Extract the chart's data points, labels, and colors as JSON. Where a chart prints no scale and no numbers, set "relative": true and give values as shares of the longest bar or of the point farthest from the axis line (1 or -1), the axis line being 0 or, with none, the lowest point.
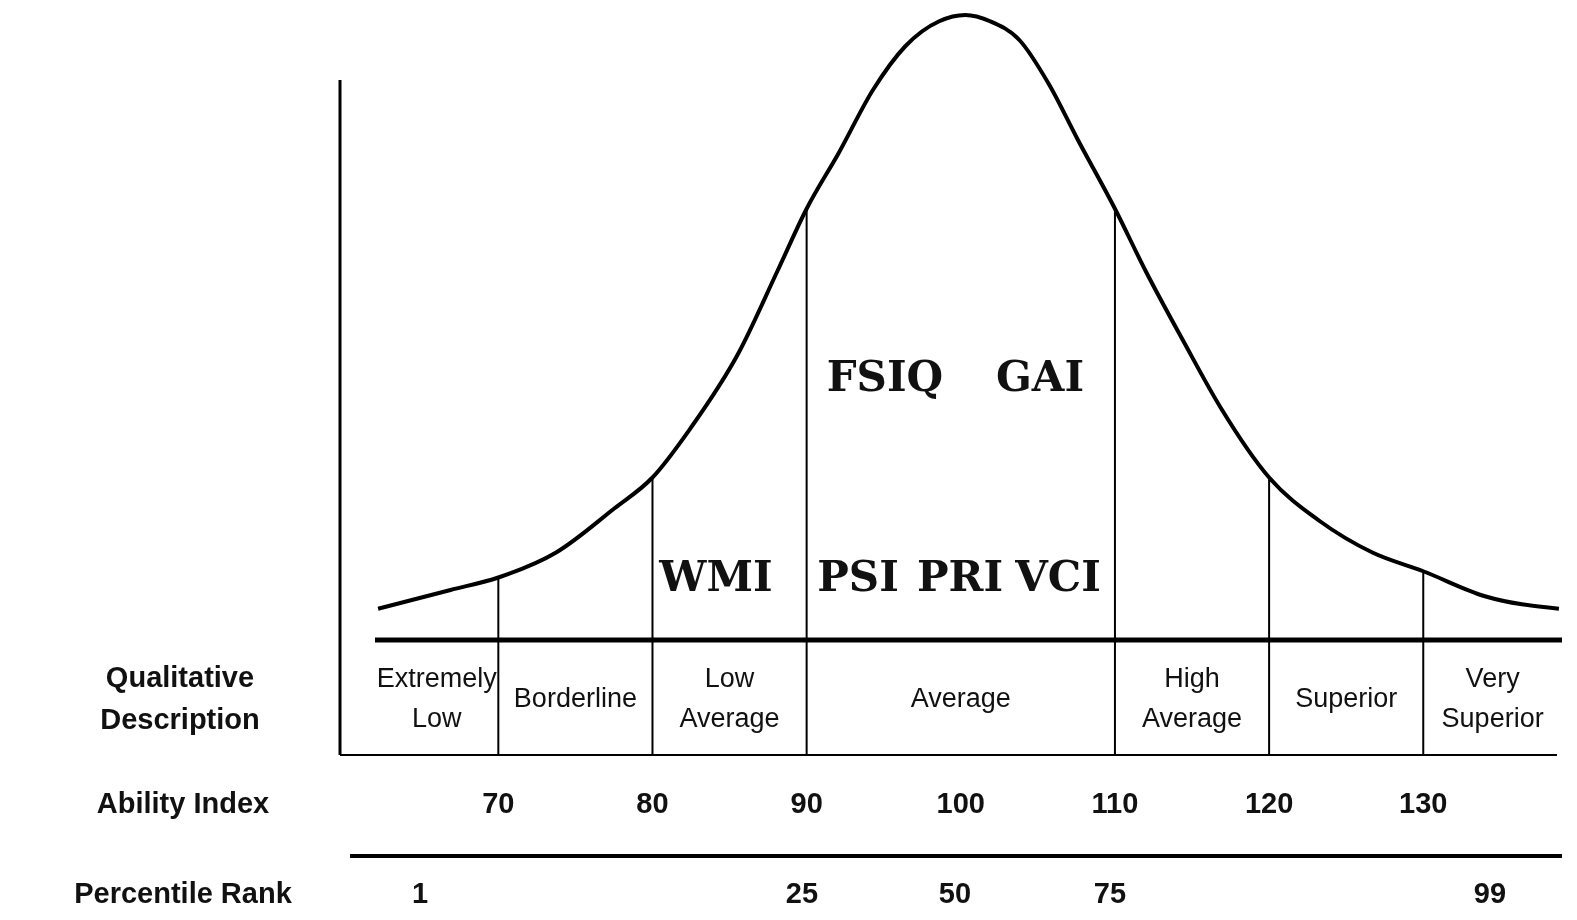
{
  "chart_data": {
    "type": "line",
    "relative": true,
    "xlim": [
      62,
      139
    ],
    "xticks": [
      70,
      80,
      90,
      100,
      110,
      120,
      130
    ],
    "xlabel": "Ability Index",
    "series": [
      {
        "color": "#000000",
        "x": [
          62.2,
          66.9,
          70,
          73.75,
          77.5,
          80,
          82.5,
          85.6,
          88.1,
          90,
          92.1,
          94.3,
          96.4,
          98.6,
          100.3,
          101.9,
          103.8,
          105.7,
          107.6,
          110,
          112,
          114.4,
          116.9,
          120,
          123.3,
          126.7,
          130,
          134,
          138.8
        ],
        "values": [
          0.05,
          0.08,
          0.1,
          0.14,
          0.21,
          0.26,
          0.34,
          0.46,
          0.59,
          0.69,
          0.78,
          0.88,
          0.95,
          0.99,
          1,
          0.99,
          0.96,
          0.89,
          0.8,
          0.69,
          0.59,
          0.48,
          0.37,
          0.26,
          0.19,
          0.14,
          0.11,
          0.07,
          0.05
        ]
      }
    ],
    "ref_lines": [
      {
        "axis": "x",
        "value": 70
      },
      {
        "axis": "x",
        "value": 80
      },
      {
        "axis": "x",
        "value": 90
      },
      {
        "axis": "x",
        "value": 110
      },
      {
        "axis": "x",
        "value": 120
      },
      {
        "axis": "x",
        "value": 130
      }
    ],
    "annotations": [
      "FSIQ",
      "GAI",
      "WMI",
      "PSI",
      "PRI",
      "VCI",
      "Qualitative Description",
      "Extremely Low",
      "Borderline",
      "Low Average",
      "Average",
      "High Average",
      "Superior",
      "Very Superior",
      "Percentile Rank",
      "1",
      "25",
      "50",
      "75",
      "99"
    ]
  }
}
